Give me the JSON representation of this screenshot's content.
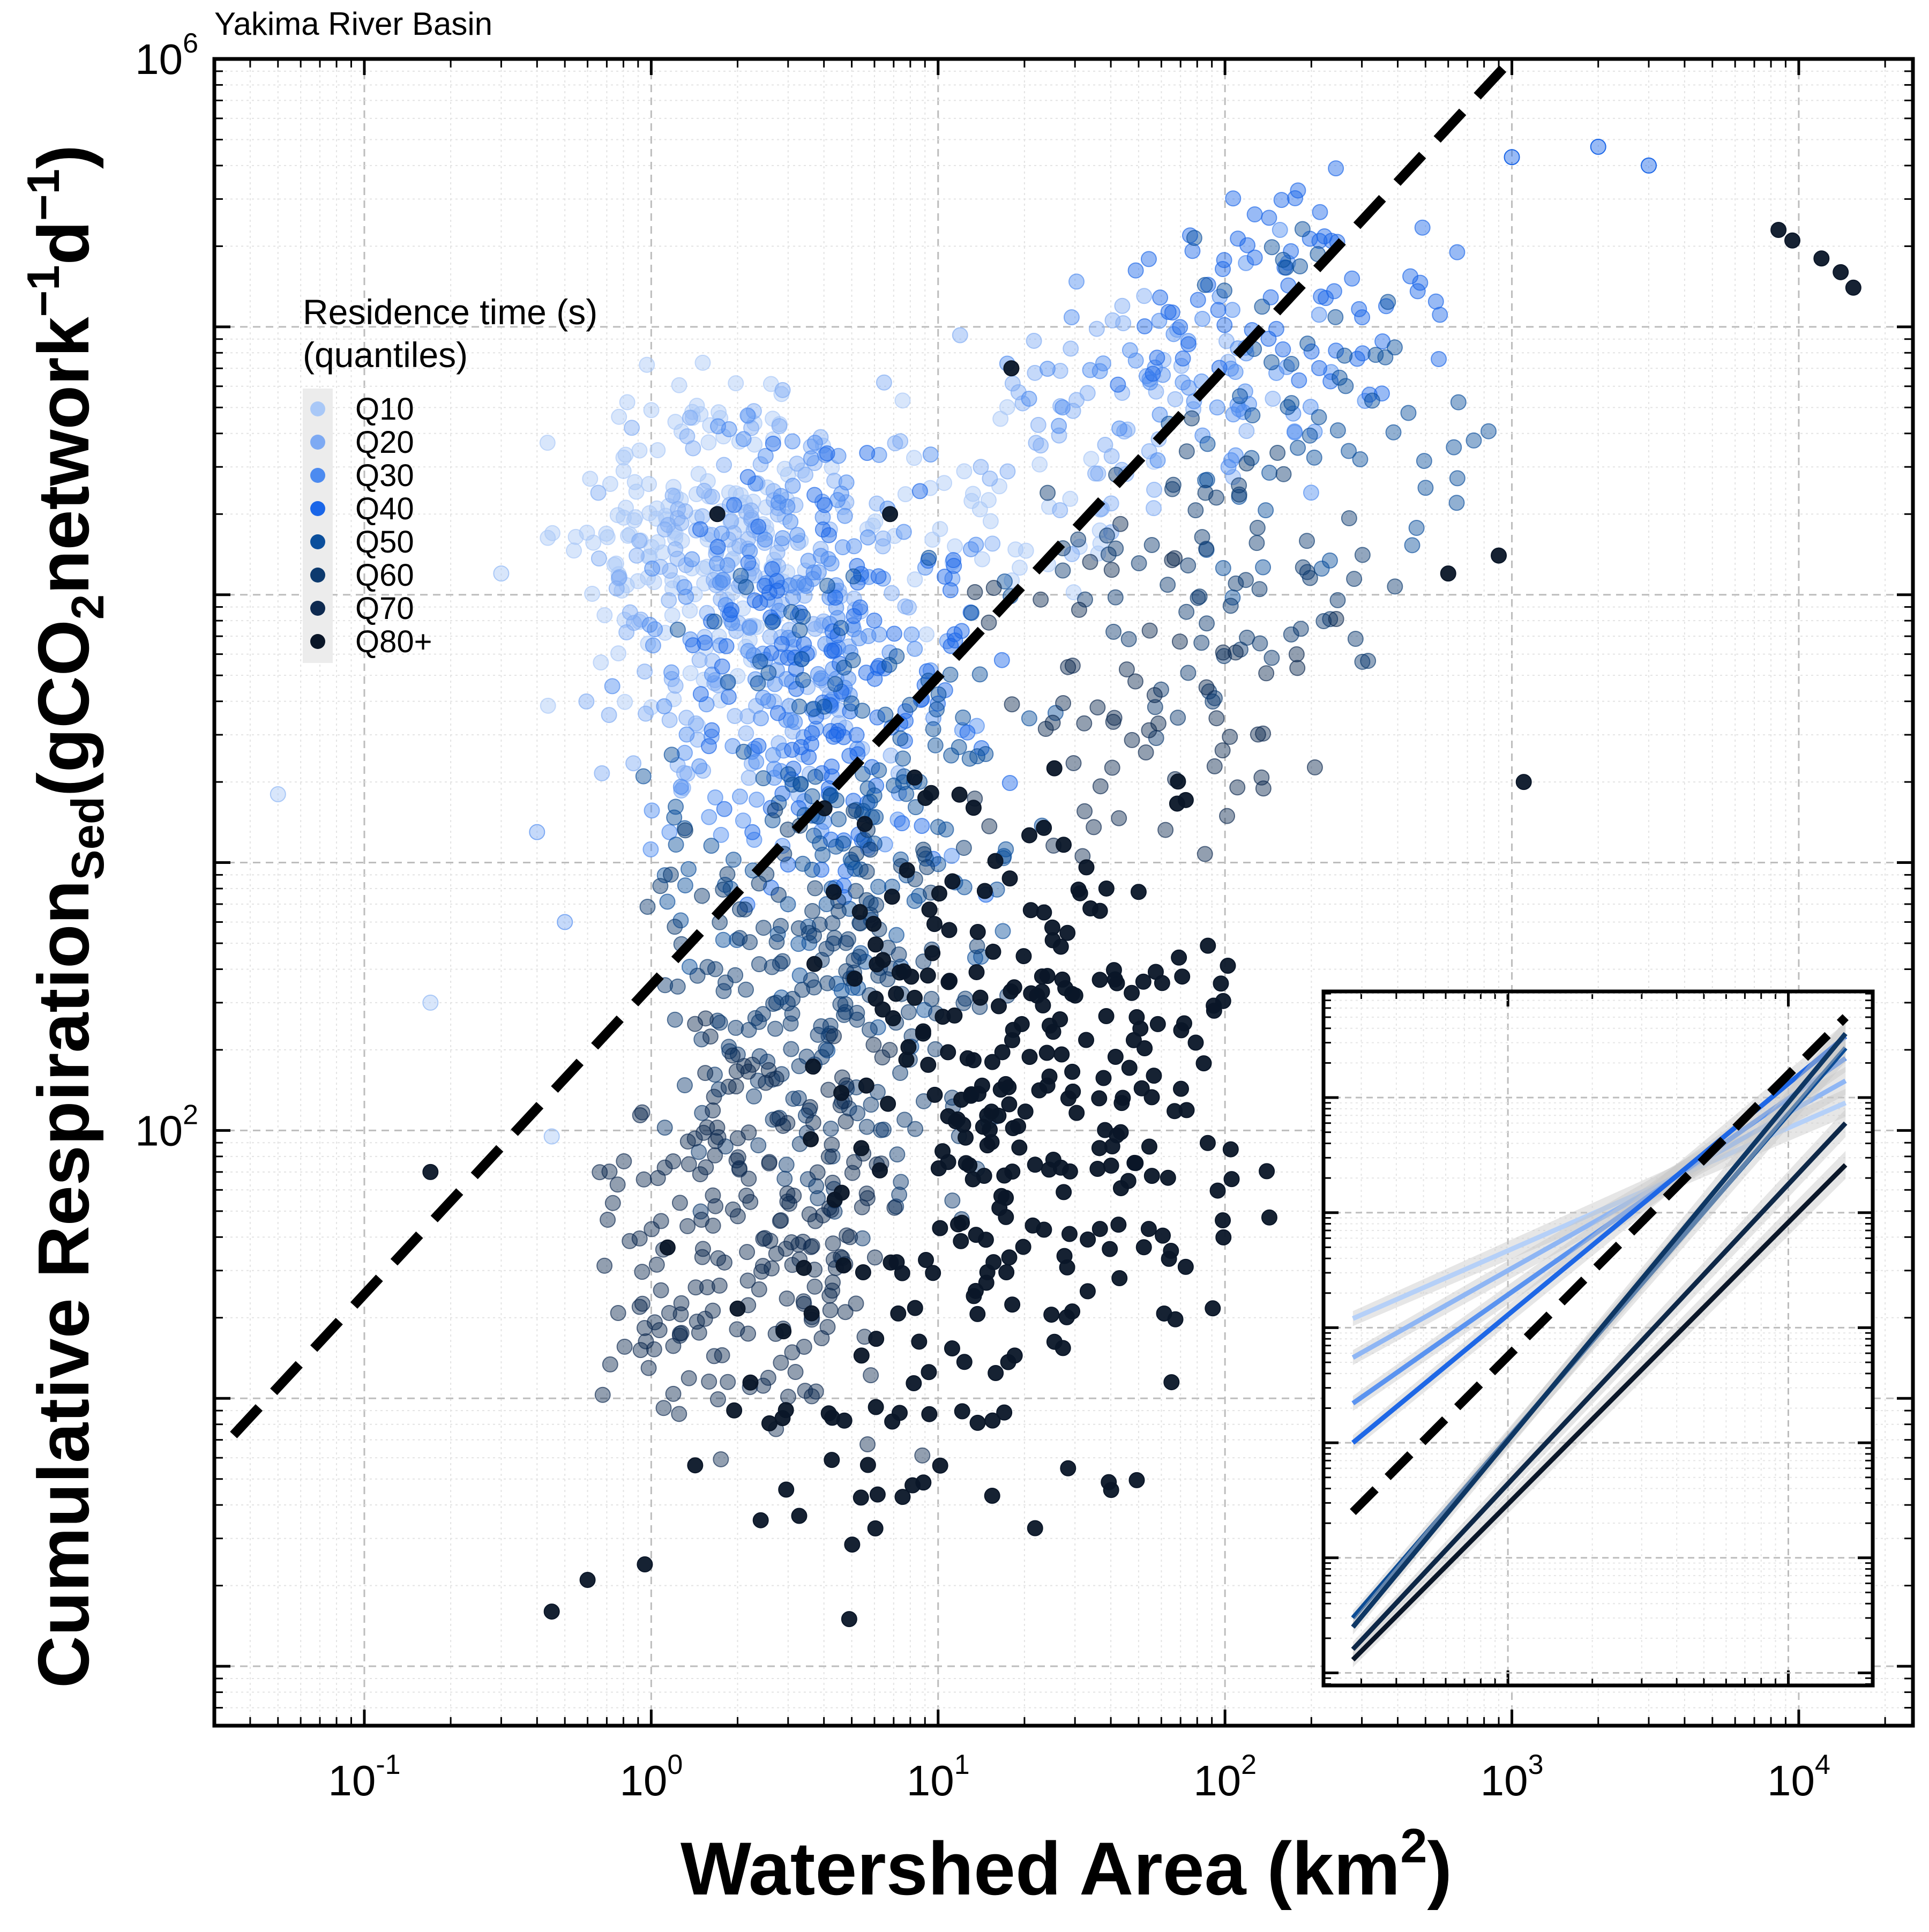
{
  "chart_data": {
    "type": "scatter",
    "subtitle": "Yakima River Basin",
    "xlabel_main": "Watershed Area (km",
    "xlabel_sup": "2",
    "xlabel_close": ")",
    "ylabel": {
      "prefix": "Cumulative Respiration",
      "sub1": "Sed",
      "mid": "(gCO",
      "sub2": "2",
      "mid2": "network",
      "sup1": "−1",
      "mid3": "d",
      "sup2": "−1",
      "close": ")"
    },
    "x_scale": "log",
    "y_scale": "log",
    "xlim": [
      0.03,
      25000
    ],
    "ylim": [
      0.6,
      1000000
    ],
    "x_ticks": [
      {
        "value": 0.1,
        "base": "10",
        "exp": "-1"
      },
      {
        "value": 1,
        "base": "10",
        "exp": "0"
      },
      {
        "value": 10,
        "base": "10",
        "exp": "1"
      },
      {
        "value": 100,
        "base": "10",
        "exp": "2"
      },
      {
        "value": 1000,
        "base": "10",
        "exp": "3"
      },
      {
        "value": 10000,
        "base": "10",
        "exp": "4"
      }
    ],
    "y_ticks": [
      {
        "value": 100,
        "base": "10",
        "exp": "2"
      },
      {
        "value": 1000000,
        "base": "10",
        "exp": "6"
      }
    ],
    "grid": true,
    "legend": {
      "title_line1": "Residence time (s)",
      "title_line2": "(quantiles)",
      "placement": "upper-left",
      "entries": [
        {
          "label": "Q10",
          "color": "#a9c8f7"
        },
        {
          "label": "Q20",
          "color": "#7eaaf3"
        },
        {
          "label": "Q30",
          "color": "#4d8bf0"
        },
        {
          "label": "Q40",
          "color": "#1a66e8"
        },
        {
          "label": "Q50",
          "color": "#0b4f9c"
        },
        {
          "label": "Q60",
          "color": "#0d3a6e"
        },
        {
          "label": "Q70",
          "color": "#0e2a50"
        },
        {
          "label": "Q80+",
          "color": "#0a1628"
        }
      ]
    },
    "reference_line": {
      "style": "dashed",
      "color": "#000000",
      "x": [
        0.035,
        1000
      ],
      "y": [
        7.3,
        1000000
      ]
    },
    "series": [
      {
        "label": "Q10",
        "clusters": [
          {
            "x_range": [
              0.4,
              5
            ],
            "y_range": [
              3000,
              80000
            ],
            "n": 170,
            "seed": 11
          },
          {
            "x_range": [
              4,
              60
            ],
            "y_range": [
              6000,
              60000
            ],
            "n": 40,
            "seed": 12
          }
        ],
        "extra_points": [
          [
            0.05,
            1800
          ],
          [
            0.17,
            300
          ],
          [
            0.3,
            12000
          ],
          [
            0.45,
            95
          ]
        ]
      },
      {
        "label": "Q20",
        "clusters": [
          {
            "x_range": [
              0.5,
              10
            ],
            "y_range": [
              1500,
              70000
            ],
            "n": 170,
            "seed": 21
          },
          {
            "x_range": [
              10,
              200
            ],
            "y_range": [
              12000,
              150000
            ],
            "n": 55,
            "seed": 22
          }
        ],
        "extra_points": [
          [
            0.4,
            1300
          ],
          [
            0.5,
            600
          ]
        ]
      },
      {
        "label": "Q30",
        "clusters": [
          {
            "x_range": [
              0.7,
              15
            ],
            "y_range": [
              800,
              60000
            ],
            "n": 170,
            "seed": 31
          },
          {
            "x_range": [
              15,
              400
            ],
            "y_range": [
              20000,
              250000
            ],
            "n": 60,
            "seed": 32
          }
        ],
        "extra_points": []
      },
      {
        "label": "Q40",
        "clusters": [
          {
            "x_range": [
              1,
              20
            ],
            "y_range": [
              500,
              40000
            ],
            "n": 140,
            "seed": 41
          },
          {
            "x_range": [
              30,
              800
            ],
            "y_range": [
              40000,
              400000
            ],
            "n": 70,
            "seed": 42
          }
        ],
        "extra_points": [
          [
            1000,
            430000
          ],
          [
            2000,
            470000
          ],
          [
            3000,
            400000
          ]
        ]
      },
      {
        "label": "Q50",
        "clusters": [
          {
            "x_range": [
              0.8,
              30
            ],
            "y_range": [
              150,
              20000
            ],
            "n": 160,
            "seed": 51
          },
          {
            "x_range": [
              50,
              1000
            ],
            "y_range": [
              8000,
              330000
            ],
            "n": 60,
            "seed": 52
          }
        ],
        "extra_points": []
      },
      {
        "label": "Q60",
        "clusters": [
          {
            "x_range": [
              0.8,
              20
            ],
            "y_range": [
              30,
              2000
            ],
            "n": 200,
            "seed": 61
          },
          {
            "x_range": [
              20,
              500
            ],
            "y_range": [
              2500,
              60000
            ],
            "n": 70,
            "seed": 62
          }
        ],
        "extra_points": []
      },
      {
        "label": "Q70",
        "clusters": [
          {
            "x_range": [
              0.5,
              10
            ],
            "y_range": [
              5,
              300
            ],
            "n": 210,
            "seed": 71
          },
          {
            "x_range": [
              10,
              300
            ],
            "y_range": [
              600,
              20000
            ],
            "n": 60,
            "seed": 72
          }
        ],
        "extra_points": []
      },
      {
        "label": "Q80+",
        "clusters": [
          {
            "x_range": [
              3,
              150
            ],
            "y_range": [
              10,
              3000
            ],
            "n": 260,
            "seed": 81
          },
          {
            "x_range": [
              1,
              60
            ],
            "y_range": [
              2,
              50
            ],
            "n": 60,
            "seed": 82
          }
        ],
        "extra_points": [
          [
            0.17,
            70
          ],
          [
            1.7,
            20000
          ],
          [
            6.8,
            20000
          ],
          [
            18,
            70000
          ],
          [
            8500,
            230000
          ],
          [
            9500,
            210000
          ],
          [
            12000,
            180000
          ],
          [
            14000,
            160000
          ],
          [
            15500,
            140000
          ],
          [
            0.45,
            1.6
          ],
          [
            0.6,
            2.1
          ],
          [
            0.95,
            2.4
          ],
          [
            4.9,
            1.5
          ],
          [
            600,
            12000
          ],
          [
            900,
            14000
          ],
          [
            1100,
            2000
          ]
        ]
      }
    ],
    "inset": {
      "x_scale": "log",
      "y_scale": "log",
      "xlim": [
        220,
        20000
      ],
      "lines": [
        {
          "label": "Q10",
          "color": "#b5d0f8",
          "x": [
            280,
            16000
          ],
          "y": [
            0.0012,
            0.09
          ]
        },
        {
          "label": "Q20",
          "color": "#8fb6f4",
          "x": [
            280,
            16000
          ],
          "y": [
            0.00055,
            0.14
          ]
        },
        {
          "label": "Q30",
          "color": "#5a93f0",
          "x": [
            280,
            16000
          ],
          "y": [
            0.00022,
            0.22
          ]
        },
        {
          "label": "Q40",
          "color": "#1e67e6",
          "x": [
            280,
            16000
          ],
          "y": [
            0.0001,
            0.34
          ]
        },
        {
          "label": "Q50",
          "color": "#0c4c95",
          "x": [
            280,
            16000
          ],
          "y": [
            3e-06,
            0.27
          ]
        },
        {
          "label": "Q60",
          "color": "#0e3764",
          "x": [
            280,
            16000
          ],
          "y": [
            2.5e-06,
            0.36
          ]
        },
        {
          "label": "Q70",
          "color": "#0d2747",
          "x": [
            280,
            16000
          ],
          "y": [
            1.6e-06,
            0.06
          ]
        },
        {
          "label": "Q80+",
          "color": "#0a1628",
          "x": [
            280,
            16000
          ],
          "y": [
            1.3e-06,
            0.026
          ]
        }
      ],
      "reference_line": {
        "style": "dashed",
        "color": "#000000",
        "x": [
          280,
          16000
        ],
        "y": [
          2.5e-05,
          0.5
        ]
      }
    }
  }
}
